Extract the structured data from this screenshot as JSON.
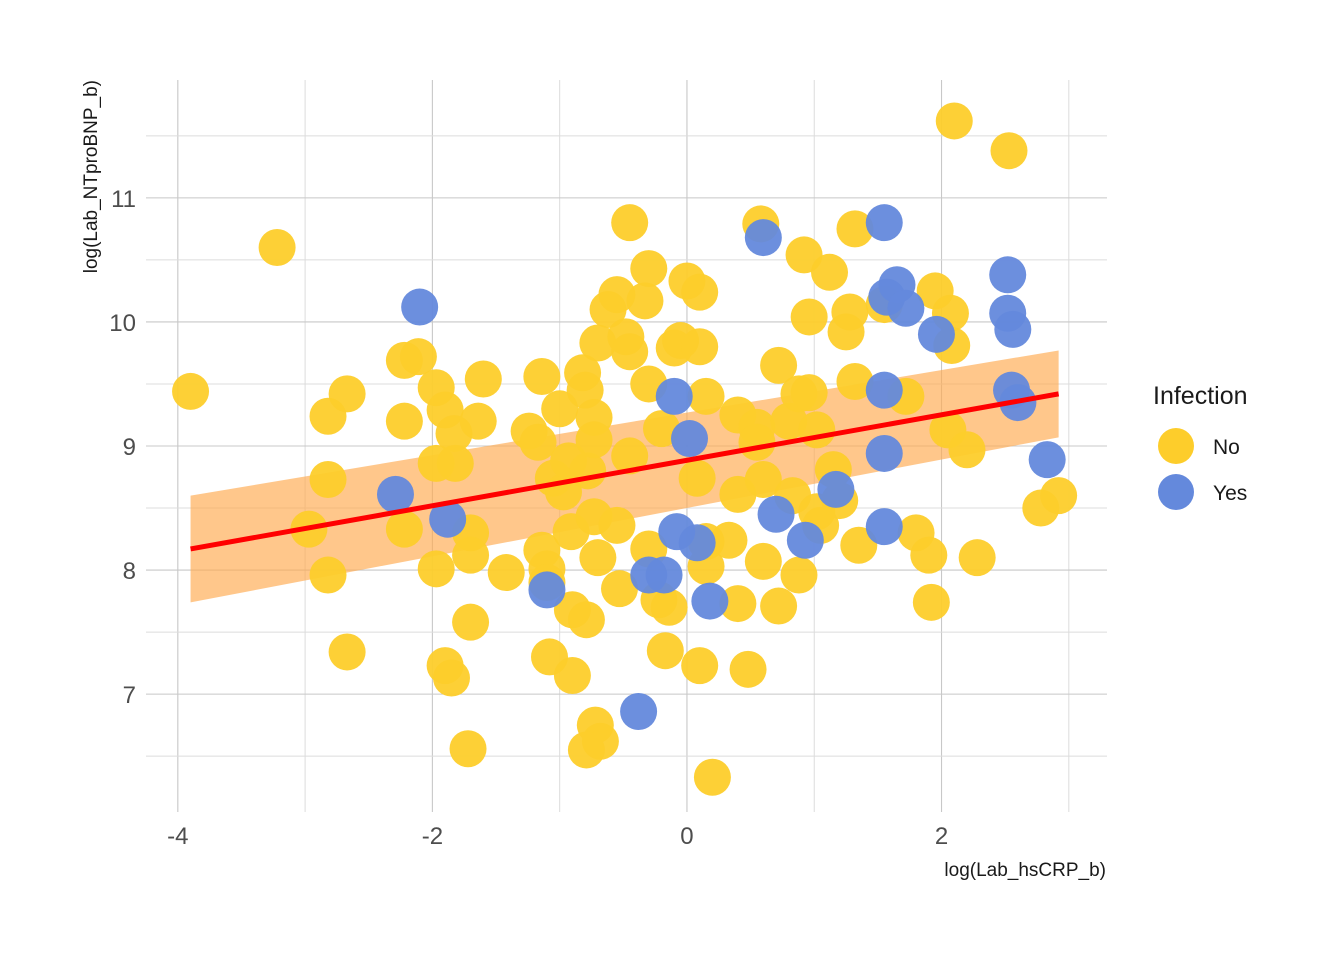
{
  "chart_data": {
    "type": "scatter",
    "xlabel": "log(Lab_hsCRP_b)",
    "ylabel": "log(Lab_NTproBNP_b)",
    "xlim": [
      -4.25,
      3.3
    ],
    "ylim": [
      6.05,
      11.95
    ],
    "x_ticks": [
      -4,
      -2,
      0,
      2
    ],
    "x_tick_labels": [
      "-4",
      "-2",
      "0",
      "2"
    ],
    "y_ticks": [
      7,
      8,
      9,
      10,
      11
    ],
    "y_tick_labels": [
      "7",
      "8",
      "9",
      "10",
      "11"
    ],
    "grid": true,
    "legend": {
      "title": "Infection",
      "position": "right",
      "entries": [
        {
          "label": "No",
          "color": "#FDCD2B"
        },
        {
          "label": "Yes",
          "color": "#6489DC"
        }
      ]
    },
    "series": [
      {
        "name": "No",
        "color": "#FDCD2B",
        "points": [
          [
            -3.9,
            9.44
          ],
          [
            -3.22,
            10.6
          ],
          [
            -2.97,
            8.33
          ],
          [
            -2.82,
            9.24
          ],
          [
            -2.82,
            8.73
          ],
          [
            -2.82,
            7.96
          ],
          [
            -2.67,
            9.42
          ],
          [
            -2.67,
            7.34
          ],
          [
            -2.22,
            9.69
          ],
          [
            -2.22,
            9.2
          ],
          [
            -2.22,
            8.33
          ],
          [
            -2.11,
            9.72
          ],
          [
            -1.97,
            9.47
          ],
          [
            -1.97,
            8.86
          ],
          [
            -1.97,
            8.01
          ],
          [
            -1.9,
            9.29
          ],
          [
            -1.9,
            7.23
          ],
          [
            -1.85,
            7.13
          ],
          [
            -1.83,
            9.1
          ],
          [
            -1.82,
            8.86
          ],
          [
            -1.7,
            8.3
          ],
          [
            -1.7,
            8.12
          ],
          [
            -1.7,
            7.58
          ],
          [
            -1.72,
            6.56
          ],
          [
            -1.64,
            9.2
          ],
          [
            -1.6,
            9.54
          ],
          [
            -1.42,
            7.98
          ],
          [
            -1.24,
            9.12
          ],
          [
            -1.17,
            9.03
          ],
          [
            -1.14,
            9.56
          ],
          [
            -1.14,
            8.16
          ],
          [
            -1.1,
            8.01
          ],
          [
            -1.1,
            7.9
          ],
          [
            -1.08,
            7.3
          ],
          [
            -1.05,
            8.74
          ],
          [
            -1.0,
            9.3
          ],
          [
            -0.97,
            8.63
          ],
          [
            -0.93,
            8.88
          ],
          [
            -0.91,
            8.31
          ],
          [
            -0.9,
            7.68
          ],
          [
            -0.9,
            7.15
          ],
          [
            -0.82,
            9.59
          ],
          [
            -0.8,
            9.45
          ],
          [
            -0.79,
            7.6
          ],
          [
            -0.78,
            8.8
          ],
          [
            -0.73,
            9.23
          ],
          [
            -0.73,
            9.05
          ],
          [
            -0.73,
            8.43
          ],
          [
            -0.7,
            9.83
          ],
          [
            -0.7,
            8.1
          ],
          [
            -0.68,
            6.62
          ],
          [
            -0.72,
            6.75
          ],
          [
            -0.79,
            6.55
          ],
          [
            -0.62,
            10.1
          ],
          [
            -0.55,
            10.22
          ],
          [
            -0.55,
            8.36
          ],
          [
            -0.53,
            7.85
          ],
          [
            -0.48,
            9.88
          ],
          [
            -0.45,
            10.8
          ],
          [
            -0.45,
            9.76
          ],
          [
            -0.45,
            8.92
          ],
          [
            -0.33,
            10.17
          ],
          [
            -0.3,
            10.43
          ],
          [
            -0.3,
            9.5
          ],
          [
            -0.3,
            8.17
          ],
          [
            -0.22,
            7.76
          ],
          [
            -0.2,
            9.14
          ],
          [
            -0.17,
            7.35
          ],
          [
            -0.14,
            7.7
          ],
          [
            -0.1,
            9.79
          ],
          [
            -0.05,
            9.85
          ],
          [
            0.0,
            10.33
          ],
          [
            0.1,
            10.24
          ],
          [
            0.1,
            9.8
          ],
          [
            0.08,
            8.74
          ],
          [
            0.1,
            7.23
          ],
          [
            0.15,
            9.4
          ],
          [
            0.15,
            8.23
          ],
          [
            0.15,
            8.03
          ],
          [
            0.2,
            6.33
          ],
          [
            0.33,
            8.24
          ],
          [
            0.4,
            9.25
          ],
          [
            0.4,
            8.61
          ],
          [
            0.4,
            7.73
          ],
          [
            0.48,
            7.2
          ],
          [
            0.55,
            9.15
          ],
          [
            0.55,
            9.03
          ],
          [
            0.58,
            10.79
          ],
          [
            0.6,
            8.73
          ],
          [
            0.6,
            8.07
          ],
          [
            0.72,
            9.65
          ],
          [
            0.72,
            7.71
          ],
          [
            0.8,
            9.2
          ],
          [
            0.83,
            8.6
          ],
          [
            0.88,
            9.42
          ],
          [
            0.88,
            7.96
          ],
          [
            0.92,
            10.54
          ],
          [
            0.96,
            9.43
          ],
          [
            0.96,
            10.04
          ],
          [
            1.02,
            9.13
          ],
          [
            1.02,
            8.47
          ],
          [
            1.05,
            8.36
          ],
          [
            1.12,
            10.4
          ],
          [
            1.15,
            8.81
          ],
          [
            1.2,
            8.56
          ],
          [
            1.25,
            9.92
          ],
          [
            1.28,
            10.08
          ],
          [
            1.32,
            10.75
          ],
          [
            1.32,
            9.52
          ],
          [
            1.35,
            8.2
          ],
          [
            1.55,
            10.14
          ],
          [
            1.72,
            9.4
          ],
          [
            1.8,
            8.3
          ],
          [
            1.9,
            8.12
          ],
          [
            1.92,
            7.74
          ],
          [
            1.95,
            10.25
          ],
          [
            2.05,
            9.13
          ],
          [
            2.07,
            10.07
          ],
          [
            2.08,
            9.81
          ],
          [
            2.1,
            11.62
          ],
          [
            2.2,
            8.97
          ],
          [
            2.28,
            8.1
          ],
          [
            2.53,
            11.38
          ],
          [
            2.78,
            8.5
          ],
          [
            2.92,
            8.6
          ]
        ]
      },
      {
        "name": "Yes",
        "color": "#6489DC",
        "points": [
          [
            -2.29,
            8.61
          ],
          [
            -2.1,
            10.12
          ],
          [
            -1.88,
            8.41
          ],
          [
            -1.1,
            7.84
          ],
          [
            -0.38,
            6.86
          ],
          [
            -0.3,
            7.96
          ],
          [
            -0.18,
            7.96
          ],
          [
            -0.1,
            9.4
          ],
          [
            -0.08,
            8.31
          ],
          [
            0.02,
            9.06
          ],
          [
            0.08,
            8.22
          ],
          [
            0.18,
            7.75
          ],
          [
            0.6,
            10.68
          ],
          [
            0.7,
            8.45
          ],
          [
            0.93,
            8.24
          ],
          [
            1.17,
            8.65
          ],
          [
            1.55,
            10.8
          ],
          [
            1.55,
            9.45
          ],
          [
            1.55,
            8.94
          ],
          [
            1.55,
            8.35
          ],
          [
            1.57,
            10.2
          ],
          [
            1.65,
            10.3
          ],
          [
            1.72,
            10.11
          ],
          [
            1.96,
            9.9
          ],
          [
            2.52,
            10.38
          ],
          [
            2.52,
            10.07
          ],
          [
            2.56,
            9.94
          ],
          [
            2.55,
            9.45
          ],
          [
            2.6,
            9.35
          ],
          [
            2.83,
            8.89
          ]
        ]
      }
    ],
    "trend_line": {
      "color": "#FF0000",
      "band_color": "#FFA94D",
      "x": [
        -3.9,
        2.92
      ],
      "y": [
        8.17,
        9.42
      ],
      "lower": [
        7.74,
        9.07
      ],
      "upper": [
        8.6,
        9.77
      ]
    }
  }
}
